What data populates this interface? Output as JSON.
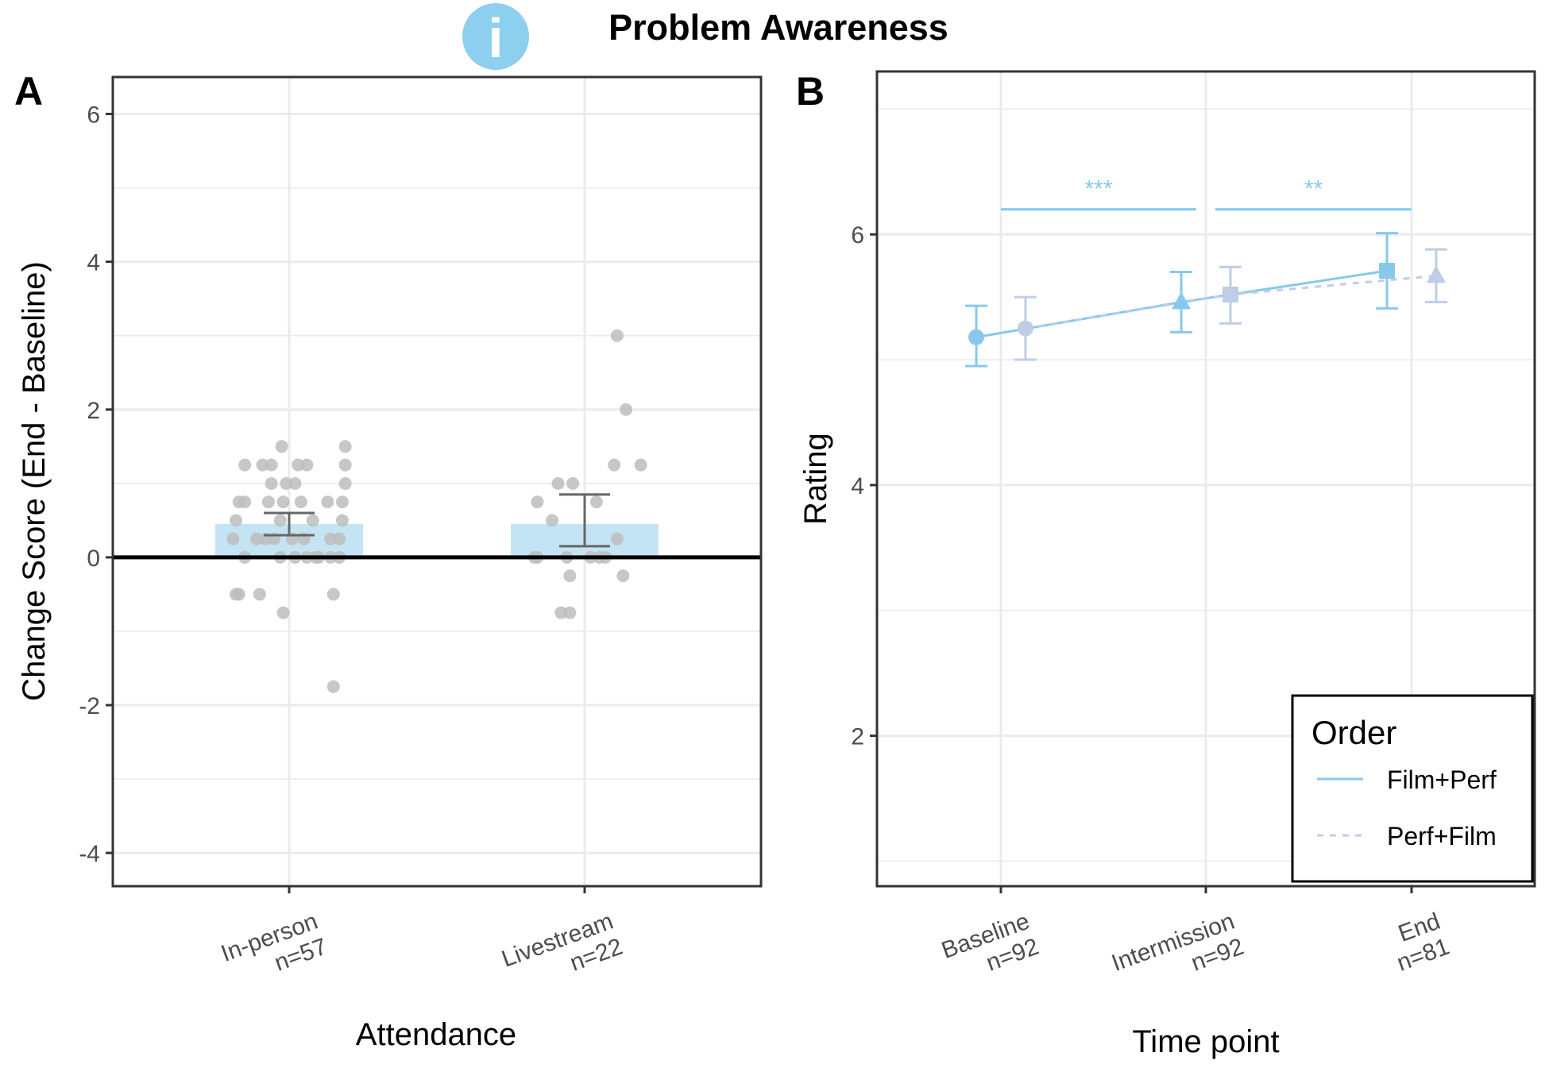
{
  "title": "Problem Awareness",
  "icon": {
    "name": "info-icon",
    "glyph": "i",
    "color": "#8ccfee"
  },
  "colors": {
    "bar_fill": "#c4e4f4",
    "point_gray": "#bdbdbd",
    "errorbar_gray": "#666666",
    "film_perf": "#87c9ec",
    "perf_film": "#bfcde6"
  },
  "panel_a": {
    "letter": "A",
    "chart_data": {
      "type": "bar",
      "xlabel": "Attendance",
      "ylabel": "Change Score (End - Baseline)",
      "ylim": [
        -4.45,
        6.5
      ],
      "yticks": [
        -4,
        -2,
        0,
        2,
        4,
        6
      ],
      "ytick_labels": [
        "-4",
        "-2",
        "0",
        "2",
        "4",
        "6"
      ],
      "grid": true,
      "reference_line": 0,
      "categories": [
        "In-person",
        "Livestream"
      ],
      "category_labels": [
        {
          "line1": "In-person",
          "line2": "n=57"
        },
        {
          "line1": "Livestream",
          "line2": "n=22"
        }
      ],
      "bars": [
        {
          "category": "In-person",
          "mean": 0.45,
          "ci_low": 0.3,
          "ci_high": 0.6
        },
        {
          "category": "Livestream",
          "mean": 0.45,
          "ci_low": 0.15,
          "ci_high": 0.85
        }
      ],
      "points": [
        [
          {
            "x": -0.15,
            "y": 1.25
          },
          {
            "x": -0.06,
            "y": 1.25
          },
          {
            "x": 0.03,
            "y": 1.25
          },
          {
            "x": 0.06,
            "y": 1.25
          },
          {
            "x": 0.19,
            "y": 1.25
          },
          {
            "x": -0.09,
            "y": 1.25
          },
          {
            "x": -0.025,
            "y": 1.5
          },
          {
            "x": 0.19,
            "y": 1.5
          },
          {
            "x": -0.06,
            "y": 1.0
          },
          {
            "x": -0.01,
            "y": 1.0
          },
          {
            "x": 0.02,
            "y": 1.0
          },
          {
            "x": 0.19,
            "y": 1.0
          },
          {
            "x": -0.17,
            "y": 0.75
          },
          {
            "x": -0.15,
            "y": 0.75
          },
          {
            "x": -0.07,
            "y": 0.75
          },
          {
            "x": -0.02,
            "y": 0.75
          },
          {
            "x": 0.04,
            "y": 0.75
          },
          {
            "x": 0.13,
            "y": 0.75
          },
          {
            "x": 0.18,
            "y": 0.75
          },
          {
            "x": -0.18,
            "y": 0.5
          },
          {
            "x": -0.03,
            "y": 0.5
          },
          {
            "x": 0.08,
            "y": 0.5
          },
          {
            "x": 0.18,
            "y": 0.5
          },
          {
            "x": -0.19,
            "y": 0.25
          },
          {
            "x": -0.11,
            "y": 0.25
          },
          {
            "x": -0.08,
            "y": 0.25
          },
          {
            "x": -0.05,
            "y": 0.25
          },
          {
            "x": 0.01,
            "y": 0.25
          },
          {
            "x": 0.05,
            "y": 0.25
          },
          {
            "x": 0.14,
            "y": 0.25
          },
          {
            "x": 0.17,
            "y": 0.25
          },
          {
            "x": -0.15,
            "y": 0.0
          },
          {
            "x": -0.03,
            "y": 0.0
          },
          {
            "x": 0.02,
            "y": 0.0
          },
          {
            "x": 0.06,
            "y": 0.0
          },
          {
            "x": 0.09,
            "y": 0.0
          },
          {
            "x": 0.1,
            "y": 0.0
          },
          {
            "x": 0.14,
            "y": 0.0
          },
          {
            "x": 0.17,
            "y": 0.0
          },
          {
            "x": -0.18,
            "y": -0.5
          },
          {
            "x": -0.17,
            "y": -0.5
          },
          {
            "x": -0.1,
            "y": -0.5
          },
          {
            "x": 0.15,
            "y": -0.5
          },
          {
            "x": -0.02,
            "y": -0.75
          },
          {
            "x": 0.15,
            "y": -1.75
          }
        ],
        [
          {
            "x": 0.11,
            "y": 3.0
          },
          {
            "x": 0.14,
            "y": 2.0
          },
          {
            "x": 0.1,
            "y": 1.25
          },
          {
            "x": 0.19,
            "y": 1.25
          },
          {
            "x": -0.09,
            "y": 1.0
          },
          {
            "x": -0.04,
            "y": 1.0
          },
          {
            "x": -0.16,
            "y": 0.75
          },
          {
            "x": 0.04,
            "y": 0.75
          },
          {
            "x": -0.11,
            "y": 0.5
          },
          {
            "x": 0.11,
            "y": 0.25
          },
          {
            "x": -0.17,
            "y": 0.0
          },
          {
            "x": -0.16,
            "y": 0.0
          },
          {
            "x": -0.06,
            "y": 0.0
          },
          {
            "x": 0.02,
            "y": 0.0
          },
          {
            "x": 0.05,
            "y": 0.0
          },
          {
            "x": 0.07,
            "y": 0.0
          },
          {
            "x": -0.05,
            "y": -0.25
          },
          {
            "x": 0.13,
            "y": -0.25
          },
          {
            "x": -0.08,
            "y": -0.75
          },
          {
            "x": -0.05,
            "y": -0.75
          }
        ]
      ]
    }
  },
  "panel_b": {
    "letter": "B",
    "chart_data": {
      "type": "line",
      "xlabel": "Time point",
      "ylabel": "Rating",
      "ylim": [
        0.8,
        7.3
      ],
      "yticks": [
        2,
        4,
        6
      ],
      "ytick_labels": [
        "2",
        "4",
        "6"
      ],
      "grid": true,
      "categories": [
        "Baseline",
        "Intermission",
        "End"
      ],
      "category_labels": [
        {
          "line1": "Baseline",
          "line2": "n=92"
        },
        {
          "line1": "Intermission",
          "line2": "n=92"
        },
        {
          "line1": "End",
          "line2": "n=81"
        }
      ],
      "series": [
        {
          "name": "Film+Perf",
          "dash": "solid",
          "shapes": [
            "circle",
            "triangle",
            "square"
          ],
          "offset": -0.12,
          "values": [
            5.18,
            5.46,
            5.71
          ],
          "ci_low": [
            4.95,
            5.22,
            5.41
          ],
          "ci_high": [
            5.43,
            5.7,
            6.01
          ]
        },
        {
          "name": "Perf+Film",
          "dash": "dashed",
          "shapes": [
            "circle",
            "square",
            "triangle"
          ],
          "offset": 0.12,
          "values": [
            5.25,
            5.52,
            5.67
          ],
          "ci_low": [
            5.0,
            5.29,
            5.46
          ],
          "ci_high": [
            5.5,
            5.74,
            5.88
          ]
        }
      ],
      "significance": [
        {
          "from": 0,
          "to": 1,
          "y": 6.2,
          "label": "***"
        },
        {
          "from": 1,
          "to": 2,
          "y": 6.2,
          "label": "**"
        }
      ],
      "legend": {
        "title": "Order",
        "position": "bottom-right",
        "entries": [
          "Film+Perf",
          "Perf+Film"
        ]
      }
    }
  }
}
